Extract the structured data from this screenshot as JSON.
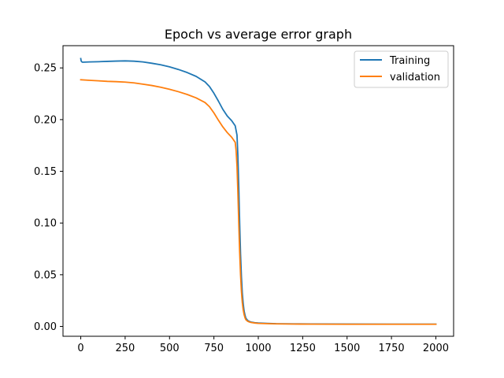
{
  "chart_data": {
    "type": "line",
    "title": "Epoch vs average error graph",
    "xlabel": "",
    "ylabel": "",
    "xlim": [
      -100,
      2100
    ],
    "ylim": [
      -0.0095,
      0.2715
    ],
    "xticks": [
      0,
      250,
      500,
      750,
      1000,
      1250,
      1500,
      1750,
      2000
    ],
    "xtick_labels": [
      "0",
      "250",
      "500",
      "750",
      "1000",
      "1250",
      "1500",
      "1750",
      "2000"
    ],
    "yticks": [
      0.0,
      0.05,
      0.1,
      0.15,
      0.2,
      0.25
    ],
    "ytick_labels": [
      "0.00",
      "0.05",
      "0.10",
      "0.15",
      "0.20",
      "0.25"
    ],
    "grid": false,
    "legend": "top-right",
    "series": [
      {
        "name": "Training",
        "color": "#1f77b4",
        "x": [
          0,
          2,
          5,
          10,
          50,
          100,
          150,
          200,
          250,
          300,
          350,
          400,
          450,
          500,
          550,
          600,
          650,
          700,
          725,
          750,
          775,
          800,
          825,
          850,
          870,
          880,
          885,
          890,
          895,
          900,
          905,
          910,
          915,
          920,
          925,
          930,
          940,
          950,
          960,
          980,
          1000,
          1050,
          1100,
          1200,
          1300,
          1500,
          1750,
          2000
        ],
        "y": [
          0.259,
          0.257,
          0.256,
          0.2555,
          0.2558,
          0.256,
          0.2563,
          0.2566,
          0.2568,
          0.2565,
          0.2558,
          0.2545,
          0.253,
          0.251,
          0.2485,
          0.2455,
          0.2418,
          0.2365,
          0.232,
          0.2255,
          0.218,
          0.21,
          0.2035,
          0.199,
          0.194,
          0.185,
          0.165,
          0.135,
          0.1,
          0.07,
          0.048,
          0.032,
          0.022,
          0.015,
          0.011,
          0.008,
          0.0058,
          0.0048,
          0.0042,
          0.0036,
          0.0033,
          0.003,
          0.0027,
          0.0025,
          0.0024,
          0.0023,
          0.0022,
          0.0022
        ]
      },
      {
        "name": "validation",
        "color": "#ff7f0e",
        "x": [
          0,
          50,
          100,
          150,
          200,
          250,
          300,
          350,
          400,
          450,
          500,
          550,
          600,
          650,
          700,
          725,
          750,
          775,
          800,
          825,
          850,
          870,
          875,
          880,
          885,
          890,
          895,
          900,
          905,
          910,
          915,
          920,
          925,
          930,
          940,
          950,
          960,
          980,
          1000,
          1050,
          1100,
          1200,
          1300,
          1500,
          1750,
          2000
        ],
        "y": [
          0.2385,
          0.238,
          0.2375,
          0.237,
          0.2367,
          0.2363,
          0.2355,
          0.2343,
          0.233,
          0.2313,
          0.2293,
          0.227,
          0.2243,
          0.221,
          0.2165,
          0.2125,
          0.2065,
          0.1995,
          0.193,
          0.1875,
          0.183,
          0.178,
          0.17,
          0.155,
          0.13,
          0.1,
          0.072,
          0.05,
          0.034,
          0.023,
          0.016,
          0.0115,
          0.0085,
          0.0065,
          0.005,
          0.0043,
          0.0038,
          0.0033,
          0.003,
          0.0027,
          0.0025,
          0.0023,
          0.0022,
          0.0021,
          0.0021,
          0.0021
        ]
      }
    ]
  }
}
